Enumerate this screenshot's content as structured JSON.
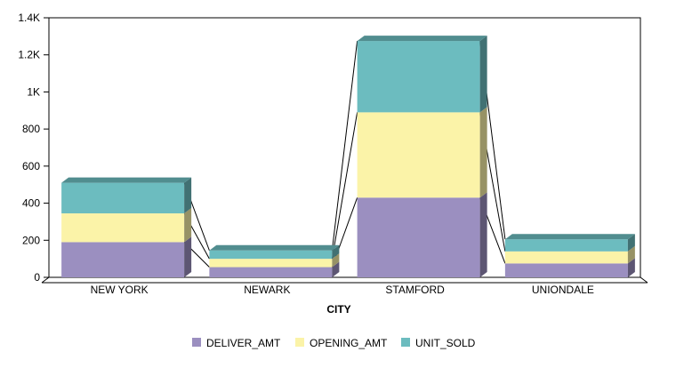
{
  "chart_data": {
    "type": "bar",
    "stacked": true,
    "three_d": true,
    "categories": [
      "NEW YORK",
      "NEWARK",
      "STAMFORD",
      "UNIONDALE"
    ],
    "series": [
      {
        "name": "DELIVER_AMT",
        "values": [
          190,
          55,
          430,
          75
        ],
        "color": "#9b8fc0"
      },
      {
        "name": "OPENING_AMT",
        "values": [
          155,
          45,
          460,
          65
        ],
        "color": "#fbf3a8"
      },
      {
        "name": "UNIT_SOLD",
        "values": [
          165,
          45,
          385,
          65
        ],
        "color": "#6cbcbf"
      }
    ],
    "xlabel": "CITY",
    "ylabel": "",
    "ylim": [
      0,
      1400
    ],
    "yticks": [
      "0",
      "200",
      "400",
      "600",
      "800",
      "1K",
      "1.2K",
      "1.4K"
    ],
    "legend_position": "bottom",
    "series_connector_lines": true
  }
}
